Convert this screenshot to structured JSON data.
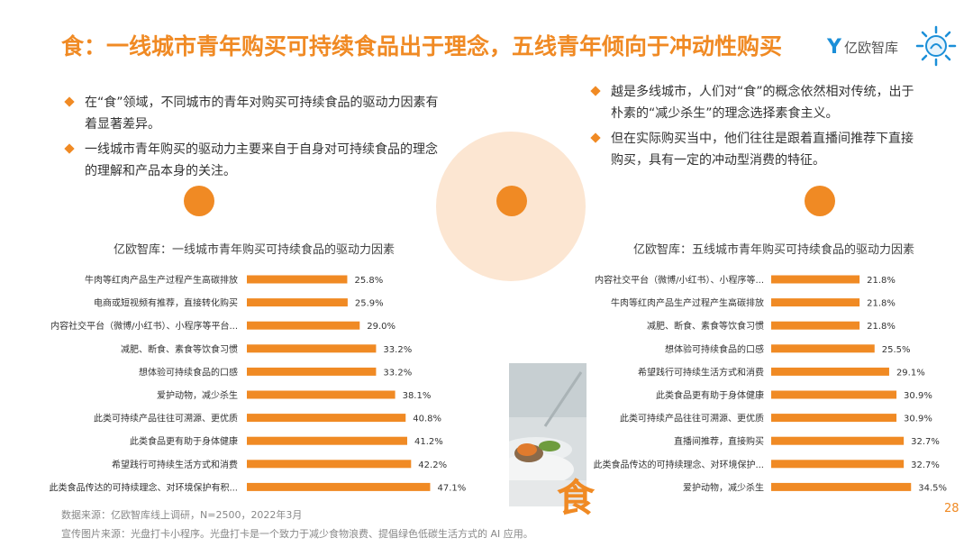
{
  "title": "食：一线城市青年购买可持续食品出于理念，五线青年倾向于冲动性购买",
  "logo": {
    "mark": "Y",
    "text": "亿欧智库"
  },
  "left_bullets": [
    "在“食”领域，不同城市的青年对购买可持续食品的驱动力因素有着显著差异。",
    "一线城市青年购买的驱动力主要来自于自身对可持续食品的理念的理解和产品本身的关注。"
  ],
  "right_bullets": [
    "越是多线城市，人们对“食”的概念依然相对传统，出于朴素的“减少杀生”的理念选择素食主义。",
    "但在实际购买当中，他们往往是跟着直播间推荐下直接购买，具有一定的冲动型消费的特征。"
  ],
  "food_glyph": "食",
  "source_line": "数据来源：亿欧智库线上调研，N=2500，2022年3月",
  "image_source_line": "宣传图片来源：光盘打卡小程序。光盘打卡是一个致力于减少食物浪费、提倡绿色低碳生活方式的 AI 应用。",
  "page_number": "28",
  "colors": {
    "accent": "#f08a24",
    "light_circle": "#fce6d2"
  },
  "chart_data": [
    {
      "type": "bar",
      "orientation": "horizontal",
      "title": "亿欧智库：一线城市青年购买可持续食品的驱动力因素",
      "categories": [
        "牛肉等红肉产品生产过程产生高碳排放",
        "电商或短视频有推荐，直接转化购买",
        "内容社交平台（微博/小红书）、小程序等平台...",
        "减肥、断食、素食等饮食习惯",
        "想体验可持续食品的口感",
        "爱护动物，减少杀生",
        "此类可持续产品往往可溯源、更优质",
        "此类食品更有助于身体健康",
        "希望践行可持续生活方式和消费",
        "此类食品传达的可持续理念、对环境保护有积..."
      ],
      "values": [
        25.8,
        25.9,
        29.0,
        33.2,
        33.2,
        38.1,
        40.8,
        41.2,
        42.2,
        47.1
      ],
      "value_labels": [
        "25.8%",
        "25.9%",
        "29.0%",
        "33.2%",
        "33.2%",
        "38.1%",
        "40.8%",
        "41.2%",
        "42.2%",
        "47.1%"
      ],
      "xlim": [
        0,
        50
      ],
      "color": "#f08a24"
    },
    {
      "type": "bar",
      "orientation": "horizontal",
      "title": "亿欧智库：五线城市青年购买可持续食品的驱动力因素",
      "categories": [
        "内容社交平台（微博/小红书）、小程序等...",
        "牛肉等红肉产品生产过程产生高碳排放",
        "减肥、断食、素食等饮食习惯",
        "想体验可持续食品的口感",
        "希望践行可持续生活方式和消费",
        "此类食品更有助于身体健康",
        "此类可持续产品往往可溯源、更优质",
        "直播间推荐，直接购买",
        "此类食品传达的可持续理念、对环境保护...",
        "爱护动物，减少杀生"
      ],
      "values": [
        21.8,
        21.8,
        21.8,
        25.5,
        29.1,
        30.9,
        30.9,
        32.7,
        32.7,
        34.5
      ],
      "value_labels": [
        "21.8%",
        "21.8%",
        "21.8%",
        "25.5%",
        "29.1%",
        "30.9%",
        "30.9%",
        "32.7%",
        "32.7%",
        "34.5%"
      ],
      "xlim": [
        0,
        36
      ],
      "color": "#f08a24"
    }
  ]
}
